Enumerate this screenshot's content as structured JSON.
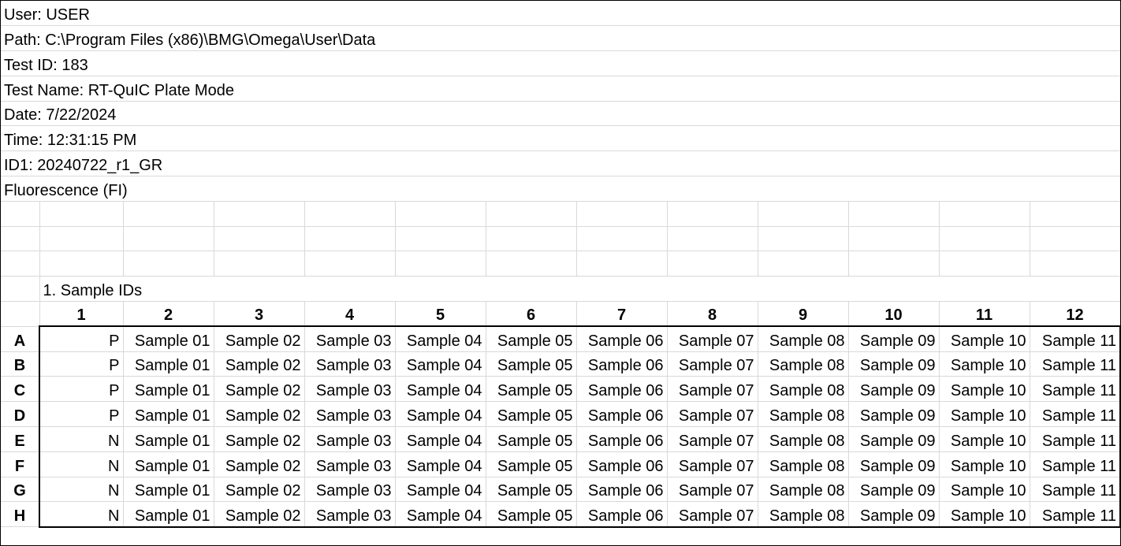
{
  "meta_lines": [
    "User: USER",
    "Path: C:\\Program Files (x86)\\BMG\\Omega\\User\\Data",
    "Test ID: 183",
    "Test Name: RT-QuIC Plate Mode",
    "Date: 7/22/2024",
    "Time: 12:31:15 PM",
    "ID1: 20240722_r1_GR",
    "Fluorescence (FI)"
  ],
  "section_title": "1. Sample IDs",
  "column_headers": [
    "1",
    "2",
    "3",
    "4",
    "5",
    "6",
    "7",
    "8",
    "9",
    "10",
    "11",
    "12"
  ],
  "rows": [
    {
      "label": "A",
      "cells": [
        "P",
        "Sample 01",
        "Sample 02",
        "Sample 03",
        "Sample 04",
        "Sample 05",
        "Sample 06",
        "Sample 07",
        "Sample 08",
        "Sample 09",
        "Sample 10",
        "Sample 11"
      ]
    },
    {
      "label": "B",
      "cells": [
        "P",
        "Sample 01",
        "Sample 02",
        "Sample 03",
        "Sample 04",
        "Sample 05",
        "Sample 06",
        "Sample 07",
        "Sample 08",
        "Sample 09",
        "Sample 10",
        "Sample 11"
      ]
    },
    {
      "label": "C",
      "cells": [
        "P",
        "Sample 01",
        "Sample 02",
        "Sample 03",
        "Sample 04",
        "Sample 05",
        "Sample 06",
        "Sample 07",
        "Sample 08",
        "Sample 09",
        "Sample 10",
        "Sample 11"
      ]
    },
    {
      "label": "D",
      "cells": [
        "P",
        "Sample 01",
        "Sample 02",
        "Sample 03",
        "Sample 04",
        "Sample 05",
        "Sample 06",
        "Sample 07",
        "Sample 08",
        "Sample 09",
        "Sample 10",
        "Sample 11"
      ]
    },
    {
      "label": "E",
      "cells": [
        "N",
        "Sample 01",
        "Sample 02",
        "Sample 03",
        "Sample 04",
        "Sample 05",
        "Sample 06",
        "Sample 07",
        "Sample 08",
        "Sample 09",
        "Sample 10",
        "Sample 11"
      ]
    },
    {
      "label": "F",
      "cells": [
        "N",
        "Sample 01",
        "Sample 02",
        "Sample 03",
        "Sample 04",
        "Sample 05",
        "Sample 06",
        "Sample 07",
        "Sample 08",
        "Sample 09",
        "Sample 10",
        "Sample 11"
      ]
    },
    {
      "label": "G",
      "cells": [
        "N",
        "Sample 01",
        "Sample 02",
        "Sample 03",
        "Sample 04",
        "Sample 05",
        "Sample 06",
        "Sample 07",
        "Sample 08",
        "Sample 09",
        "Sample 10",
        "Sample 11"
      ]
    },
    {
      "label": "H",
      "cells": [
        "N",
        "Sample 01",
        "Sample 02",
        "Sample 03",
        "Sample 04",
        "Sample 05",
        "Sample 06",
        "Sample 07",
        "Sample 08",
        "Sample 09",
        "Sample 10",
        "Sample 11"
      ]
    }
  ]
}
